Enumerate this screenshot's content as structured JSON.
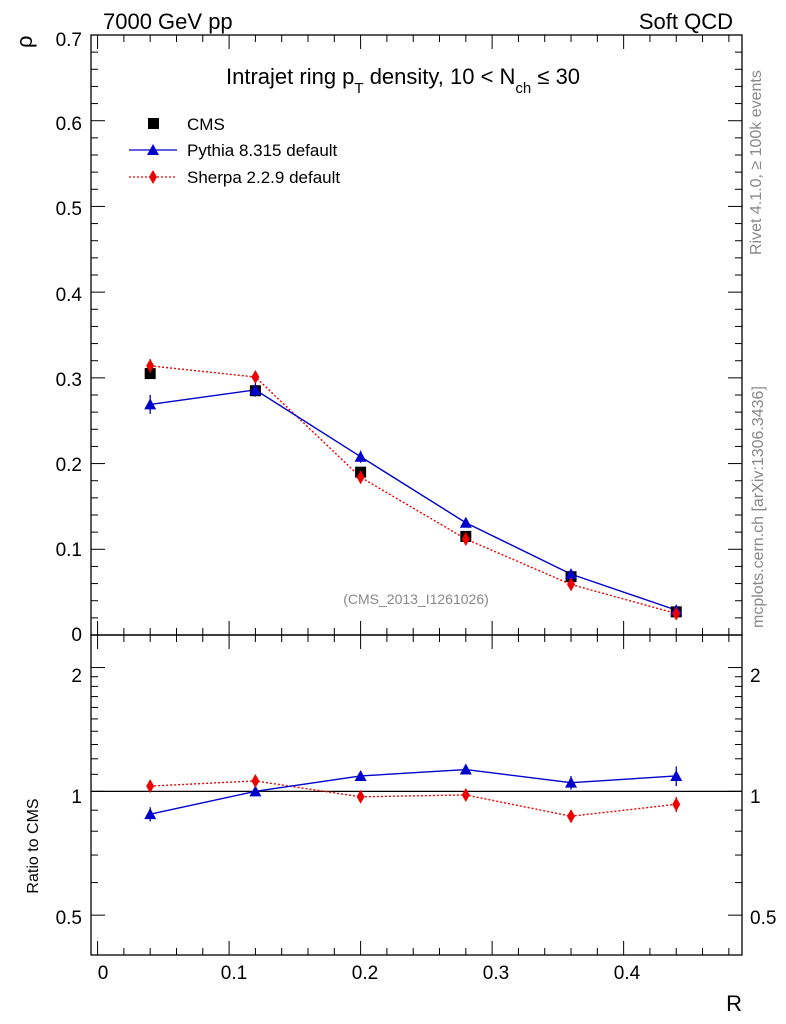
{
  "header": {
    "energy_label": "7000 GeV pp",
    "category_label": "Soft QCD",
    "rivet_label": "Rivet 4.1.0, ≥ 100k events",
    "mcplots_label": "mcplots.cern.ch [arXiv:1306.3436]",
    "analysis_id": "(CMS_2013_I1261026)"
  },
  "colors": {
    "data": "#000000",
    "pythia": "#0000cc",
    "sherpa": "#ee0000",
    "watermark": "#888888"
  },
  "chart_data": [
    {
      "type": "scatter",
      "title_main": "Intrajet ring p",
      "title_sub_T": "T",
      "title_mid": " density, 10 < N",
      "title_sub_ch": "ch",
      "title_end": " ≤ 30",
      "ylabel": "ρ",
      "xlim": [
        -0.005,
        0.49
      ],
      "ylim": [
        0,
        0.7
      ],
      "yticks": [
        0.1,
        0.2,
        0.3,
        0.4,
        0.5,
        0.6,
        0.7
      ],
      "ytick_labels": [
        "0.1",
        "0.2",
        "0.3",
        "0.4",
        "0.5",
        "0.6",
        "0.7"
      ],
      "y_zero_label": "0",
      "x": [
        0.04,
        0.12,
        0.2,
        0.28,
        0.36,
        0.44
      ],
      "legend_position": "top-left",
      "series": [
        {
          "name": "CMS",
          "style": "markers",
          "values": [
            0.305,
            0.285,
            0.19,
            0.115,
            0.068,
            0.027
          ],
          "errors": [
            0.004,
            0.004,
            0.003,
            0.002,
            0.002,
            0.001
          ]
        },
        {
          "name": "Pythia 8.315 default",
          "style": "line",
          "values": [
            0.269,
            0.286,
            0.208,
            0.131,
            0.071,
            0.029
          ],
          "errors": [
            0.011,
            0.008,
            0.007,
            0.004,
            0.003,
            0.002
          ]
        },
        {
          "name": "Sherpa 2.2.9 default",
          "style": "dotted",
          "values": [
            0.314,
            0.301,
            0.184,
            0.112,
            0.059,
            0.025
          ],
          "errors": [
            0.008,
            0.007,
            0.005,
            0.004,
            0.003,
            0.002
          ]
        }
      ]
    },
    {
      "type": "line",
      "ylabel": "Ratio to CMS",
      "xlabel": "R",
      "xlim": [
        -0.005,
        0.49
      ],
      "ylim": [
        0.4,
        2.4
      ],
      "yscale": "log",
      "yticks": [
        0.5,
        1,
        2
      ],
      "ytick_labels": [
        "0.5",
        "1",
        "2"
      ],
      "xticks": [
        0,
        0.1,
        0.2,
        0.3,
        0.4
      ],
      "xtick_labels": [
        "0",
        "0.1",
        "0.2",
        "0.3",
        "0.4"
      ],
      "x": [
        0.04,
        0.12,
        0.2,
        0.28,
        0.36,
        0.44
      ],
      "reference": 1,
      "series": [
        {
          "name": "Pythia 8.315 default",
          "values": [
            0.88,
            1.0,
            1.09,
            1.13,
            1.05,
            1.09
          ],
          "errors": [
            0.035,
            0.02,
            0.03,
            0.03,
            0.04,
            0.06
          ]
        },
        {
          "name": "Sherpa 2.2.9 default",
          "values": [
            1.03,
            1.06,
            0.97,
            0.98,
            0.87,
            0.93
          ],
          "errors": [
            0.02,
            0.02,
            0.015,
            0.02,
            0.03,
            0.04
          ]
        }
      ]
    }
  ]
}
